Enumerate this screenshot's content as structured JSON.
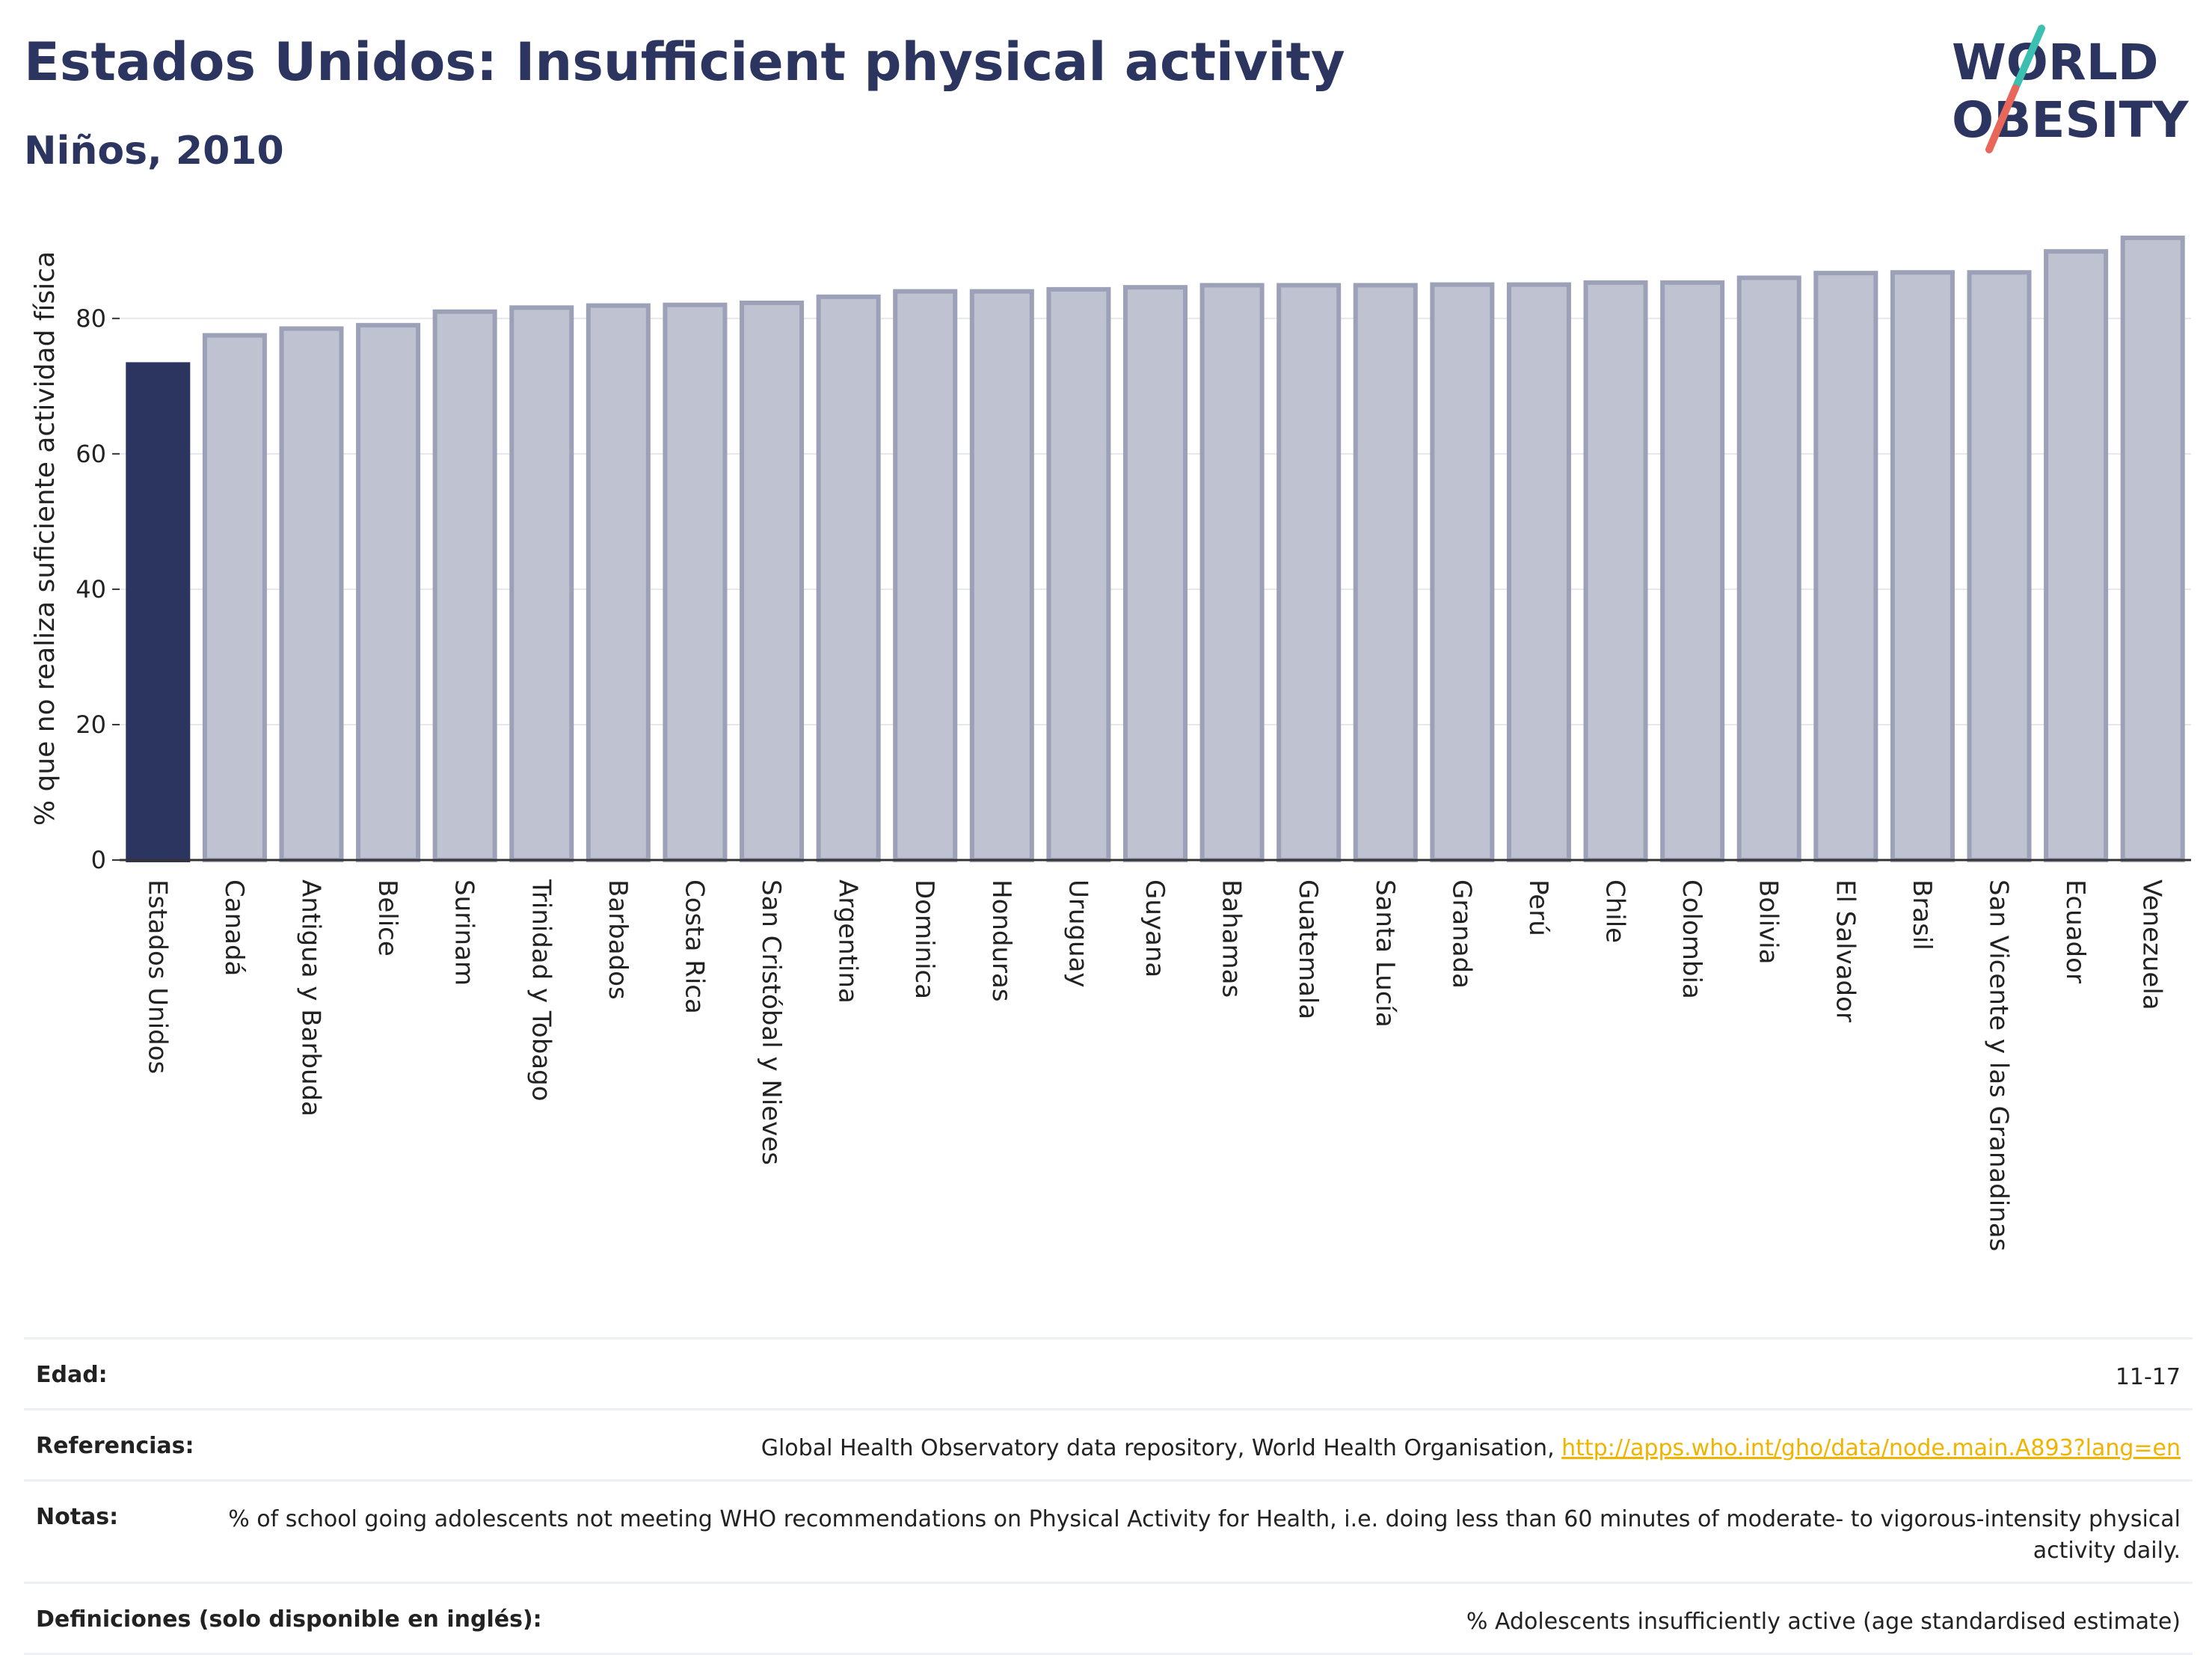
{
  "header": {
    "title": "Estados Unidos: Insufficient physical activity",
    "subtitle": "Niños, 2010"
  },
  "logo": {
    "line1": "WORLD",
    "line2": "OBESITY",
    "colors": {
      "text": "#2b3560",
      "slash_teal": "#3bbfb0",
      "slash_coral": "#e8665a"
    }
  },
  "chart_data": {
    "type": "bar",
    "xlabel": "",
    "ylabel": "% que no realiza suficiente actividad física",
    "ylim": [
      0,
      95
    ],
    "yticks": [
      0,
      20,
      40,
      60,
      80
    ],
    "grid": true,
    "categories": [
      "Estados Unidos",
      "Canadá",
      "Antigua y Barbuda",
      "Belice",
      "Surinam",
      "Trinidad y Tobago",
      "Barbados",
      "Costa Rica",
      "San Cristóbal y Nieves",
      "Argentina",
      "Dominica",
      "Honduras",
      "Uruguay",
      "Guyana",
      "Bahamas",
      "Guatemala",
      "Santa Lucía",
      "Granada",
      "Perú",
      "Chile",
      "Colombia",
      "Bolivia",
      "El Salvador",
      "Brasil",
      "San Vicente y las Granadinas",
      "Ecuador",
      "Venezuela"
    ],
    "values": [
      73.2,
      77.5,
      78.5,
      79.0,
      81.0,
      81.6,
      81.9,
      82.0,
      82.3,
      83.2,
      84.0,
      84.0,
      84.3,
      84.6,
      84.9,
      84.9,
      84.9,
      85.0,
      85.0,
      85.3,
      85.3,
      86.0,
      86.7,
      86.8,
      86.8,
      89.9,
      91.9
    ],
    "highlight_index": 0,
    "colors": {
      "highlight": "#2b3560",
      "bar_fill": "#bfc2d0",
      "bar_edge": "#9ca1b8"
    }
  },
  "meta": {
    "rows": [
      {
        "key": "Edad:",
        "value": "11-17"
      },
      {
        "key": "Referencias:",
        "value": "Global Health Observatory data repository, World Health Organisation, ",
        "link": "http://apps.who.int/gho/data/node.main.A893?lang=en"
      },
      {
        "key": "Notas:",
        "value": "% of school going adolescents not meeting WHO recommendations on Physical Activity for Health, i.e. doing less than 60 minutes of moderate- to vigorous-intensity physical activity daily."
      },
      {
        "key": "Definiciones (solo disponible en inglés):",
        "value": "% Adolescents insufficiently active (age standardised estimate)"
      }
    ]
  }
}
